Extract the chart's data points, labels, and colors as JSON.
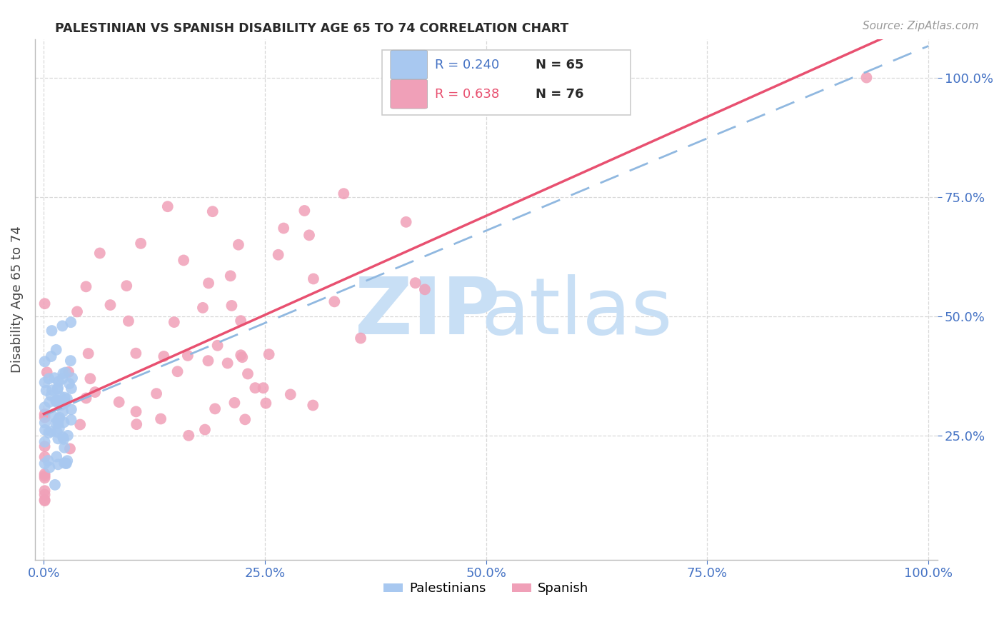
{
  "title": "PALESTINIAN VS SPANISH DISABILITY AGE 65 TO 74 CORRELATION CHART",
  "source": "Source: ZipAtlas.com",
  "ylabel": "Disability Age 65 to 74",
  "background_color": "#ffffff",
  "grid_color": "#d8d8d8",
  "blue_color": "#a8c8f0",
  "pink_color": "#f0a0b8",
  "blue_line_color": "#90b8e0",
  "pink_line_color": "#e85070",
  "watermark_zip_color": "#c8dff5",
  "watermark_atlas_color": "#c8dff5",
  "tick_color": "#4472c4",
  "legend_blue_r": "R = 0.240",
  "legend_blue_n": "N = 65",
  "legend_pink_r": "R = 0.638",
  "legend_pink_n": "N = 76",
  "xticks": [
    0.0,
    0.25,
    0.5,
    0.75,
    1.0
  ],
  "xtick_labels": [
    "0.0%",
    "25.0%",
    "50.0%",
    "75.0%",
    "100.0%"
  ],
  "yticks": [
    0.25,
    0.5,
    0.75,
    1.0
  ],
  "ytick_labels": [
    "25.0%",
    "50.0%",
    "75.0%",
    "100.0%"
  ]
}
